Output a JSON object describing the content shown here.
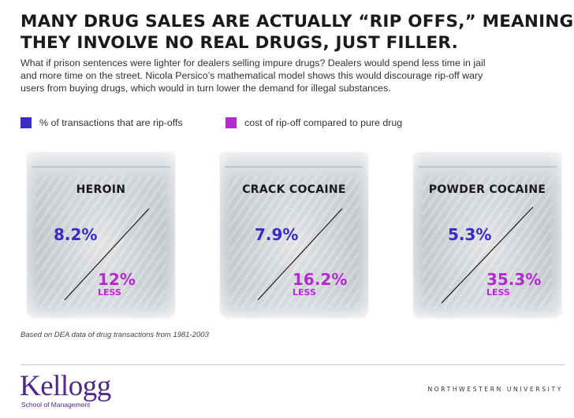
{
  "headline": {
    "line1": "MANY DRUG SALES ARE ACTUALLY “RIP OFFS,” MEANING",
    "line2": "THEY INVOLVE NO REAL DRUGS, JUST FILLER."
  },
  "intro": [
    "What if prison sentences were lighter for dealers selling impure drugs? Dealers would spend less time in jail",
    "and more time on the street. Nicola Persico’s mathematical model shows this would discourage rip-off wary",
    "users from buying drugs, which would in turn lower the demand for illegal substances."
  ],
  "colors": {
    "rip": "#3b2bc4",
    "cost": "#b42bd0",
    "brand": "#4e2a84"
  },
  "chart_data": {
    "type": "table",
    "legend": [
      "% of transactions that are rip-offs",
      "cost of rip-off compared to pure drug"
    ],
    "items": [
      {
        "drug": "HEROIN",
        "rip_offs": "8.2%",
        "cost": "12%",
        "cost_note": "LESS"
      },
      {
        "drug": "CRACK COCAINE",
        "rip_offs": "7.9%",
        "cost": "16.2%",
        "cost_note": "LESS"
      },
      {
        "drug": "POWDER COCAINE",
        "rip_offs": "5.3%",
        "cost": "35.3%",
        "cost_note": "LESS"
      }
    ]
  },
  "source": "Based on DEA data of drug transactions from 1981-2003",
  "footer": {
    "logo": "Kellogg",
    "logo_sub": "School of Management",
    "university": "NORTHWESTERN UNIVERSITY"
  }
}
